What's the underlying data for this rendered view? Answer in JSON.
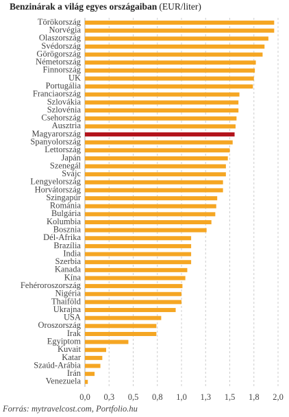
{
  "chart_data": {
    "type": "barh",
    "title": "Benzinárak a világ egyes országaiban",
    "unit": "(EUR/liter)",
    "source": "Forrás: mytravelcost.com, Portfolio.hu",
    "categories": [
      "Törökország",
      "Norvégia",
      "Olaszország",
      "Svédország",
      "Görögország",
      "Németország",
      "Finnország",
      "UK",
      "Portugália",
      "Franciaország",
      "Szlovákia",
      "Szlovénia",
      "Csehország",
      "Ausztria",
      "Magyarország",
      "Spanyolország",
      "Lettország",
      "Japán",
      "Szenegál",
      "Svájc",
      "Lengyelország",
      "Horvátország",
      "Szingapúr",
      "Románia",
      "Bulgária",
      "Kolumbia",
      "Bosznia",
      "Dél-Afrika",
      "Brazília",
      "India",
      "Szerbia",
      "Kanada",
      "Kína",
      "Fehéroroszország",
      "Nigéria",
      "Thaiföld",
      "Ukrajna",
      "USA",
      "Oroszország",
      "Irak",
      "Egyiptom",
      "Kuvait",
      "Katar",
      "Szaúd-Arábia",
      "Irán",
      "Venezuela"
    ],
    "values": [
      1.96,
      1.96,
      1.9,
      1.86,
      1.84,
      1.77,
      1.76,
      1.75,
      1.74,
      1.6,
      1.59,
      1.59,
      1.57,
      1.56,
      1.55,
      1.53,
      1.5,
      1.48,
      1.46,
      1.46,
      1.43,
      1.43,
      1.37,
      1.36,
      1.35,
      1.31,
      1.26,
      1.1,
      1.1,
      1.1,
      1.1,
      1.06,
      1.04,
      1.01,
      1.0,
      1.0,
      0.94,
      0.79,
      0.74,
      0.74,
      0.45,
      0.22,
      0.18,
      0.16,
      0.1,
      0.03
    ],
    "colors": [
      "#f5a623",
      "#f5a623",
      "#f5a623",
      "#f5a623",
      "#f5a623",
      "#f5a623",
      "#f5a623",
      "#f5a623",
      "#f5a623",
      "#f5a623",
      "#f5a623",
      "#f5a623",
      "#f5a623",
      "#f5a623",
      "#b3141c",
      "#f5a623",
      "#f5a623",
      "#f5a623",
      "#f5a623",
      "#f5a623",
      "#f5a623",
      "#f5a623",
      "#f5a623",
      "#f5a623",
      "#f5a623",
      "#f5a623",
      "#f5a623",
      "#f5a623",
      "#f5a623",
      "#f5a623",
      "#f5a623",
      "#f5a623",
      "#f5a623",
      "#f5a623",
      "#f5a623",
      "#f5a623",
      "#f5a623",
      "#f5a623",
      "#f5a623",
      "#f5a623",
      "#f5a623",
      "#f5a623",
      "#f5a623",
      "#f5a623",
      "#f5a623",
      "#f5a623"
    ],
    "xlim": [
      0,
      2
    ],
    "xticks": [
      {
        "value": 0,
        "label": "0,0"
      },
      {
        "value": 0.25,
        "label": "0,3"
      },
      {
        "value": 0.5,
        "label": "0,5"
      },
      {
        "value": 0.75,
        "label": "0,8"
      },
      {
        "value": 1,
        "label": "1,0"
      },
      {
        "value": 1.25,
        "label": "1,3"
      },
      {
        "value": 1.5,
        "label": "1,5"
      },
      {
        "value": 1.75,
        "label": "1,8"
      },
      {
        "value": 2,
        "label": "2,0"
      }
    ],
    "grid": true
  }
}
